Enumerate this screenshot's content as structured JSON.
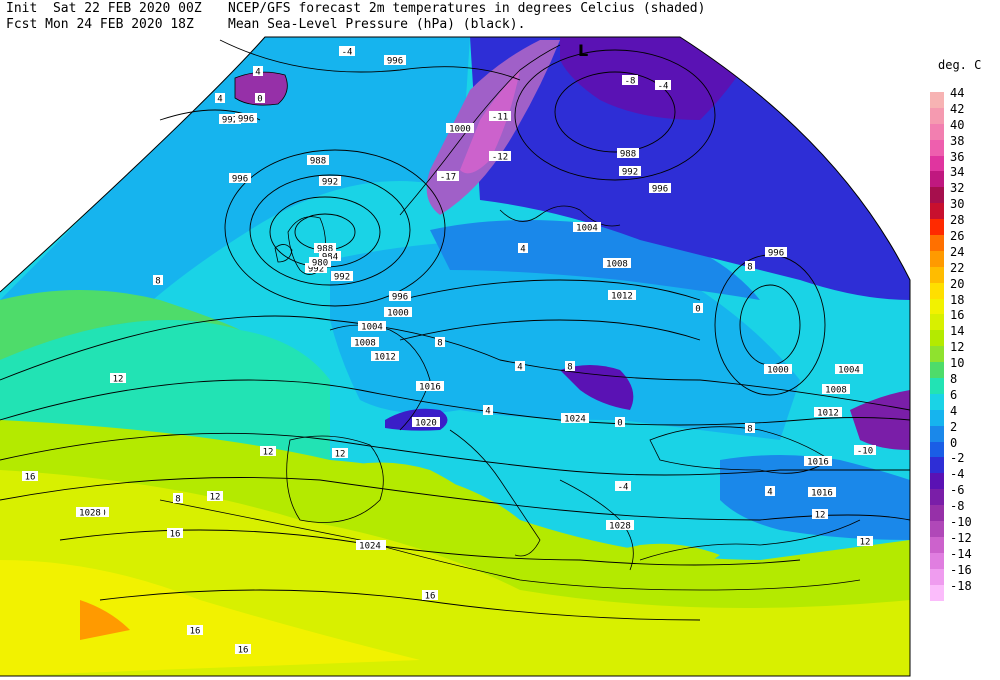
{
  "header": {
    "init_line": "Init  Sat 22 FEB 2020 00Z",
    "fcst_line": "Fcst Mon 24 FEB 2020 18Z",
    "title_line1": "NCEP/GFS forecast 2m temperatures in degrees Celcius (shaded)",
    "title_line2": "Mean Sea-Level Pressure (hPa) (black)."
  },
  "legend": {
    "title": "deg. C",
    "items": [
      {
        "value": "44",
        "color": "#f7b3b3"
      },
      {
        "value": "42",
        "color": "#f59ab0"
      },
      {
        "value": "40",
        "color": "#f27fb0"
      },
      {
        "value": "38",
        "color": "#ee5fae"
      },
      {
        "value": "36",
        "color": "#e0359f"
      },
      {
        "value": "34",
        "color": "#c0187f"
      },
      {
        "value": "32",
        "color": "#a60f4d"
      },
      {
        "value": "30",
        "color": "#c8102e"
      },
      {
        "value": "28",
        "color": "#ff2a00"
      },
      {
        "value": "26",
        "color": "#ff7000"
      },
      {
        "value": "24",
        "color": "#ff9a00"
      },
      {
        "value": "22",
        "color": "#ffbc00"
      },
      {
        "value": "20",
        "color": "#ffdf00"
      },
      {
        "value": "18",
        "color": "#f2f200"
      },
      {
        "value": "16",
        "color": "#d8f000"
      },
      {
        "value": "14",
        "color": "#b4ea00"
      },
      {
        "value": "12",
        "color": "#8fe22e"
      },
      {
        "value": "10",
        "color": "#4edc6a"
      },
      {
        "value": "8",
        "color": "#22e3b4"
      },
      {
        "value": "6",
        "color": "#1ad3e6"
      },
      {
        "value": "4",
        "color": "#16b4ee"
      },
      {
        "value": "2",
        "color": "#1a88ea"
      },
      {
        "value": "0",
        "color": "#1a5ee6"
      },
      {
        "value": "-2",
        "color": "#2e2ed6"
      },
      {
        "value": "-4",
        "color": "#5a12b4"
      },
      {
        "value": "-6",
        "color": "#7a1ea8"
      },
      {
        "value": "-8",
        "color": "#9630a8"
      },
      {
        "value": "-10",
        "color": "#b048b8"
      },
      {
        "value": "-12",
        "color": "#cc62cc"
      },
      {
        "value": "-14",
        "color": "#e07ee0"
      },
      {
        "value": "-16",
        "color": "#ef9cef"
      },
      {
        "value": "-18",
        "color": "#fbbcfb"
      }
    ]
  },
  "isobar_labels": [
    "996",
    "992",
    "996",
    "996",
    "992",
    "988",
    "992",
    "988",
    "984",
    "980",
    "992",
    "996",
    "1000",
    "1004",
    "1008",
    "1012",
    "1016",
    "1020",
    "1024",
    "1028",
    "1024",
    "1004",
    "1008",
    "1012",
    "988",
    "992",
    "996",
    "996",
    "1000",
    "1004",
    "1008",
    "1012",
    "1016",
    "1016",
    "1020",
    "1024",
    "1028",
    "1000",
    "1004",
    "1008"
  ],
  "temp_labels": [
    "-4",
    "4",
    "4",
    "0",
    "8",
    "8",
    "12",
    "16",
    "12",
    "16",
    "-11",
    "-12",
    "-17",
    "-4",
    "4",
    "0",
    "8",
    "12",
    "16",
    "-10",
    "4",
    "12",
    "16",
    "8",
    "4",
    "0",
    "-4",
    "8",
    "4",
    "8",
    "12",
    "16",
    "-8",
    "12"
  ],
  "colors": {
    "sea_cold": "#16b4ee",
    "sea_mild": "#1ad3e6",
    "sea_warm": "#22e3b4",
    "land_warm": "#d8f000",
    "land_hot": "#f2f200",
    "snow": "#a060c8",
    "deep_cold": "#3a1ec8"
  }
}
